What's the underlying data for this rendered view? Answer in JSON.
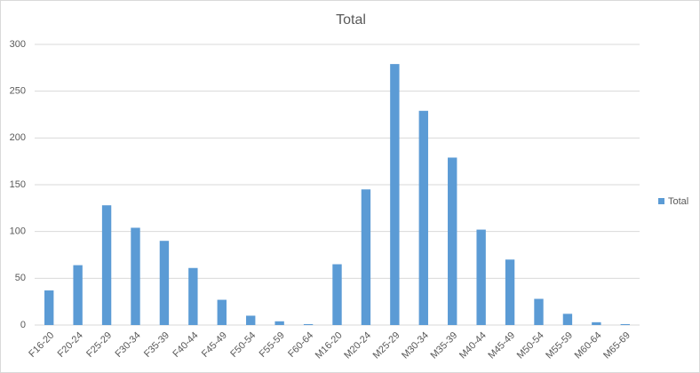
{
  "chart_data": {
    "type": "bar",
    "title": "Total",
    "categories": [
      "F16-20",
      "F20-24",
      "F25-29",
      "F30-34",
      "F35-39",
      "F40-44",
      "F45-49",
      "F50-54",
      "F55-59",
      "F60-64",
      "M16-20",
      "M20-24",
      "M25-29",
      "M30-34",
      "M35-39",
      "M40-44",
      "M45-49",
      "M50-54",
      "M55-59",
      "M60-64",
      "M65-69"
    ],
    "series": [
      {
        "name": "Total",
        "color": "#5b9bd5",
        "values": [
          37,
          64,
          128,
          104,
          90,
          61,
          27,
          10,
          4,
          1,
          65,
          145,
          279,
          229,
          179,
          102,
          70,
          28,
          12,
          3,
          1
        ]
      }
    ],
    "ylim": [
      0,
      300
    ],
    "yticks": [
      0,
      50,
      100,
      150,
      200,
      250,
      300
    ],
    "grid": true,
    "legend": "right"
  }
}
